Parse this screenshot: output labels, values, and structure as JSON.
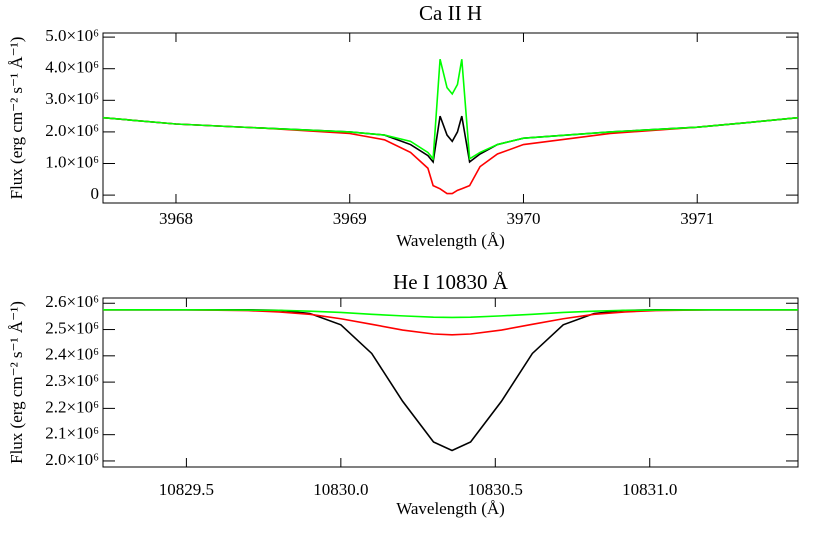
{
  "chart_data": [
    {
      "type": "line",
      "title": "Ca II H",
      "xlabel": "Wavelength (Å)",
      "ylabel": "Flux (erg cm⁻² s⁻¹ Å⁻¹)",
      "x": [
        3967.58,
        3968.0,
        3968.5,
        3969.0,
        3969.2,
        3969.35,
        3969.45,
        3969.48,
        3969.52,
        3969.56,
        3969.59,
        3969.62,
        3969.645,
        3969.69,
        3969.75,
        3969.85,
        3970.0,
        3970.5,
        3971.0,
        3971.3,
        3971.58
      ],
      "series": [
        {
          "name": "black",
          "color": "#000000",
          "values": [
            2450000,
            2250000,
            2120000,
            2000000,
            1900000,
            1600000,
            1250000,
            1050000,
            2500000,
            1900000,
            1700000,
            2000000,
            2500000,
            1050000,
            1300000,
            1600000,
            1800000,
            2000000,
            2150000,
            2300000,
            2450000
          ]
        },
        {
          "name": "red",
          "color": "#ff0000",
          "values": [
            2450000,
            2250000,
            2120000,
            1950000,
            1750000,
            1350000,
            850000,
            300000,
            200000,
            50000,
            50000,
            150000,
            200000,
            300000,
            900000,
            1300000,
            1600000,
            1950000,
            2150000,
            2300000,
            2450000
          ]
        },
        {
          "name": "green",
          "color": "#00ff00",
          "values": [
            2450000,
            2250000,
            2120000,
            2000000,
            1900000,
            1700000,
            1350000,
            1150000,
            4300000,
            3400000,
            3200000,
            3500000,
            4300000,
            1150000,
            1350000,
            1600000,
            1800000,
            2000000,
            2150000,
            2300000,
            2450000
          ]
        }
      ],
      "xlim": [
        3967.58,
        3971.58
      ],
      "xticks": [
        3968,
        3969,
        3970,
        3971
      ],
      "ylim": [
        -250000,
        5130000
      ],
      "yticks": [
        0,
        {
          "value": 1000000,
          "label": "1.0×10⁶"
        },
        {
          "value": 2000000,
          "label": "2.0×10⁶"
        },
        {
          "value": 3000000,
          "label": "3.0×10⁶"
        },
        {
          "value": 4000000,
          "label": "4.0×10⁶"
        },
        {
          "value": 5000000,
          "label": "5.0×10⁶"
        }
      ]
    },
    {
      "type": "line",
      "title": "He I 10830 Å",
      "xlabel": "Wavelength (Å)",
      "ylabel": "Flux (erg cm⁻² s⁻¹ Å⁻¹)",
      "x": [
        10829.23,
        10829.5,
        10829.7,
        10829.8,
        10829.9,
        10830.0,
        10830.1,
        10830.2,
        10830.3,
        10830.36,
        10830.42,
        10830.52,
        10830.62,
        10830.72,
        10830.82,
        10830.92,
        10831.02,
        10831.2,
        10831.48
      ],
      "series": [
        {
          "name": "black",
          "color": "#000000",
          "values": [
            2575000,
            2575000,
            2575000,
            2573000,
            2561000,
            2518000,
            2409000,
            2227000,
            2072000,
            2040000,
            2072000,
            2227000,
            2409000,
            2518000,
            2561000,
            2573000,
            2575000,
            2575000,
            2575000
          ]
        },
        {
          "name": "red",
          "color": "#ff0000",
          "values": [
            2575000,
            2575000,
            2572000,
            2567000,
            2558000,
            2541000,
            2520000,
            2498000,
            2483000,
            2480000,
            2483000,
            2498000,
            2520000,
            2541000,
            2558000,
            2567000,
            2572000,
            2575000,
            2575000
          ]
        },
        {
          "name": "green",
          "color": "#00ff00",
          "values": [
            2575000,
            2575000,
            2574000,
            2573000,
            2570000,
            2565000,
            2558000,
            2552000,
            2547000,
            2546000,
            2547000,
            2552000,
            2558000,
            2565000,
            2570000,
            2573000,
            2574000,
            2575000,
            2575000
          ]
        }
      ],
      "xlim": [
        10829.23,
        10831.48
      ],
      "xticks": [
        10829.5,
        {
          "value": 10830,
          "label": "10830.0"
        },
        10830.5,
        {
          "value": 10831,
          "label": "10831.0"
        }
      ],
      "ylim": [
        1977000,
        2620000
      ],
      "yticks": [
        {
          "value": 2000000,
          "label": "2.0×10⁶"
        },
        {
          "value": 2100000,
          "label": "2.1×10⁶"
        },
        {
          "value": 2200000,
          "label": "2.2×10⁶"
        },
        {
          "value": 2300000,
          "label": "2.3×10⁶"
        },
        {
          "value": 2400000,
          "label": "2.4×10⁶"
        },
        {
          "value": 2500000,
          "label": "2.5×10⁶"
        },
        {
          "value": 2600000,
          "label": "2.6×10⁶"
        }
      ]
    }
  ]
}
